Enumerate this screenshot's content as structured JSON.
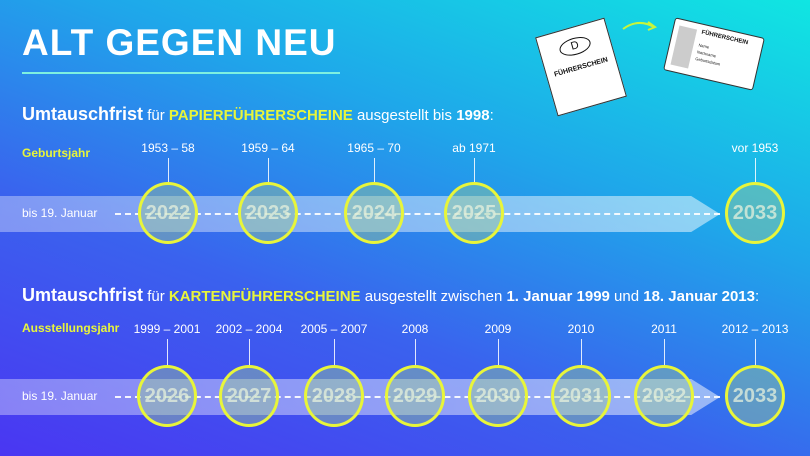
{
  "title": "ALT GEGEN NEU",
  "illustration": {
    "paper_label": "FÜHRERSCHEIN",
    "paper_letter": "D",
    "card_title": "FÜHRERSCHEIN",
    "card_fields": [
      "Name",
      "Nachname",
      "Geburtsdatum"
    ]
  },
  "section1": {
    "pre": "Umtauschfrist",
    "t1": " für ",
    "hl": "PAPIERFÜHRERSCHEINE",
    "t2": " ausgestellt bis ",
    "b1": "1998",
    "t3": ":",
    "row_label": "Geburtsjahr",
    "deadline": "bis 19. Januar",
    "items": [
      {
        "label": "1953 – 58",
        "year": "2022"
      },
      {
        "label": "1959 – 64",
        "year": "2023"
      },
      {
        "label": "1965 – 70",
        "year": "2024"
      },
      {
        "label": "ab 1971",
        "year": "2025"
      },
      {
        "label": "vor 1953",
        "year": "2033"
      }
    ]
  },
  "section2": {
    "pre": "Umtauschfrist",
    "t1": " für ",
    "hl": "KARTENFÜHRERSCHEINE",
    "t2": " ausgestellt zwischen ",
    "b1": "1. Januar 1999",
    "t3": " und ",
    "b2": "18. Januar 2013",
    "t4": ":",
    "row_label": "Ausstellungsjahr",
    "deadline": "bis 19. Januar",
    "items": [
      {
        "label": "1999 – 2001",
        "year": "2026"
      },
      {
        "label": "2002 – 2004",
        "year": "2027"
      },
      {
        "label": "2005 – 2007",
        "year": "2028"
      },
      {
        "label": "2008",
        "year": "2029"
      },
      {
        "label": "2009",
        "year": "2030"
      },
      {
        "label": "2010",
        "year": "2031"
      },
      {
        "label": "2011",
        "year": "2032"
      },
      {
        "label": "2012 – 2013",
        "year": "2033"
      }
    ]
  },
  "colors": {
    "accent": "#e8f53a"
  }
}
